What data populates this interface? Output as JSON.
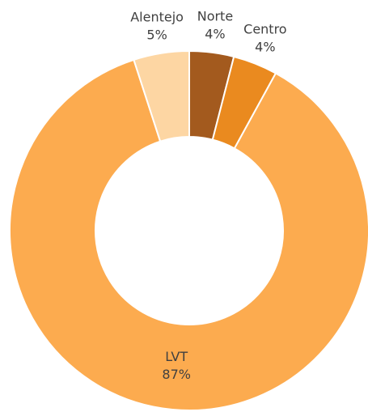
{
  "chart_data": {
    "type": "donut",
    "categories": [
      "Norte",
      "Centro",
      "LVT",
      "Alentejo"
    ],
    "values": [
      4,
      4,
      87,
      5
    ],
    "value_labels": [
      "4%",
      "4%",
      "87%",
      "5%"
    ],
    "colors": [
      "#a35a1e",
      "#ea8a1f",
      "#fcab4f",
      "#fdd6a3"
    ]
  }
}
